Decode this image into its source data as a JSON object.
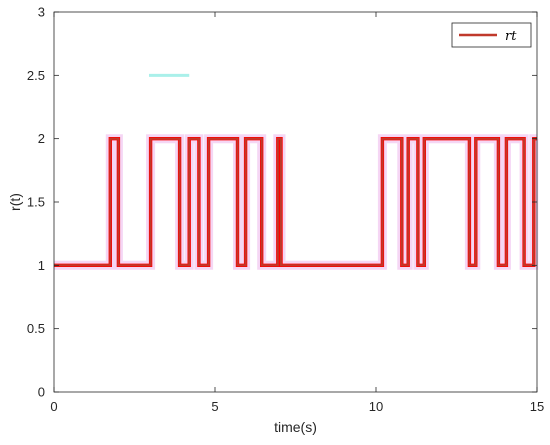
{
  "chart_data": {
    "type": "line",
    "title": "",
    "xlabel": "time(s)",
    "ylabel": "r(t)",
    "xlim": [
      0,
      15
    ],
    "ylim": [
      0,
      3
    ],
    "x_ticks": [
      0,
      5,
      10,
      15
    ],
    "x_tick_labels": [
      "0",
      "5",
      "10",
      "15"
    ],
    "y_ticks": [
      0,
      0.5,
      1,
      1.5,
      2,
      2.5,
      3
    ],
    "y_tick_labels": [
      "0",
      "0.5",
      "1",
      "1.5",
      "2",
      "2.5",
      "3"
    ],
    "grid": false,
    "legend_position": "top-right",
    "step": true,
    "series": [
      {
        "name": "rt",
        "color": "#c0392b",
        "highlight_color": "#ff0000",
        "band_color": "#f2c8f0",
        "x": [
          0,
          1.75,
          2.0,
          3.0,
          3.9,
          4.2,
          4.5,
          4.8,
          5.7,
          5.95,
          6.3,
          6.35,
          6.45,
          6.95,
          7.05,
          10.2,
          10.8,
          11.0,
          11.3,
          11.5,
          12.9,
          13.1,
          13.8,
          14.05,
          14.6,
          14.9,
          15
        ],
        "y": [
          1,
          2,
          1,
          2,
          1,
          2,
          1,
          2,
          1,
          2,
          2,
          2,
          1,
          2,
          1,
          2,
          1,
          2,
          1,
          2,
          1,
          2,
          1,
          2,
          1,
          2,
          2
        ]
      },
      {
        "name": "",
        "color": "#aaf0ea",
        "x": [
          2.95,
          4.2
        ],
        "y": [
          2.5,
          2.5
        ]
      }
    ]
  }
}
